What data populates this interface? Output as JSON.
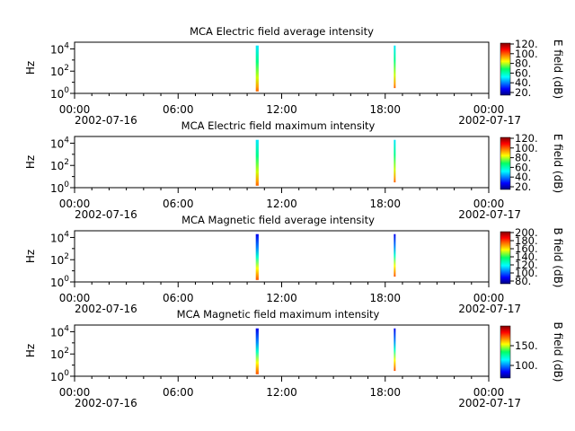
{
  "chart_data": [
    {
      "type": "heatmap",
      "title": "MCA  Electric field average intensity",
      "ylabel": "Hz",
      "y_scale": "log",
      "y_ticks": [
        {
          "base": "10",
          "exp": "0"
        },
        {
          "base": "10",
          "exp": "2"
        },
        {
          "base": "10",
          "exp": "4"
        }
      ],
      "x_ticks": [
        "00:00",
        "06:00",
        "12:00",
        "18:00",
        "00:00"
      ],
      "x_dates": [
        "2002-07-16",
        "2002-07-17"
      ],
      "colorbar": {
        "label": "E field (dB)",
        "ticks": [
          "120.",
          "100.",
          "80.",
          "60.",
          "40.",
          "20."
        ]
      },
      "segments": [
        {
          "x_start": "10:30",
          "x_end": "10:40",
          "freq_low": 1.5,
          "freq_high": 20000
        },
        {
          "x_start": "18:30",
          "x_end": "18:34",
          "freq_low": 3,
          "freq_high": 20000
        }
      ]
    },
    {
      "type": "heatmap",
      "title": "MCA  Electric field maximum intensity",
      "ylabel": "Hz",
      "y_scale": "log",
      "y_ticks": [
        {
          "base": "10",
          "exp": "0"
        },
        {
          "base": "10",
          "exp": "2"
        },
        {
          "base": "10",
          "exp": "4"
        }
      ],
      "x_ticks": [
        "00:00",
        "06:00",
        "12:00",
        "18:00",
        "00:00"
      ],
      "x_dates": [
        "2002-07-16",
        "2002-07-17"
      ],
      "colorbar": {
        "label": "E field (dB)",
        "ticks": [
          "120.",
          "100.",
          "80.",
          "60.",
          "40.",
          "20."
        ]
      },
      "segments": [
        {
          "x_start": "10:30",
          "x_end": "10:40",
          "freq_low": 1.5,
          "freq_high": 20000
        },
        {
          "x_start": "18:30",
          "x_end": "18:34",
          "freq_low": 3,
          "freq_high": 20000
        }
      ]
    },
    {
      "type": "heatmap",
      "title": "MCA  Magnetic field average intensity",
      "ylabel": "Hz",
      "y_scale": "log",
      "y_ticks": [
        {
          "base": "10",
          "exp": "0"
        },
        {
          "base": "10",
          "exp": "2"
        },
        {
          "base": "10",
          "exp": "4"
        }
      ],
      "x_ticks": [
        "00:00",
        "06:00",
        "12:00",
        "18:00",
        "00:00"
      ],
      "x_dates": [
        "2002-07-16",
        "2002-07-17"
      ],
      "colorbar": {
        "label": "B field (dB)",
        "ticks": [
          "200.",
          "180.",
          "160.",
          "140.",
          "120.",
          "100.",
          "80."
        ]
      },
      "segments": [
        {
          "x_start": "10:30",
          "x_end": "10:40",
          "freq_low": 1.5,
          "freq_high": 20000
        },
        {
          "x_start": "18:30",
          "x_end": "18:34",
          "freq_low": 3,
          "freq_high": 20000
        }
      ]
    },
    {
      "type": "heatmap",
      "title": "MCA  Magnetic field maximum intensity",
      "ylabel": "Hz",
      "y_scale": "log",
      "y_ticks": [
        {
          "base": "10",
          "exp": "0"
        },
        {
          "base": "10",
          "exp": "2"
        },
        {
          "base": "10",
          "exp": "4"
        }
      ],
      "x_ticks": [
        "00:00",
        "06:00",
        "12:00",
        "18:00",
        "00:00"
      ],
      "x_dates": [
        "2002-07-16",
        "2002-07-17"
      ],
      "colorbar": {
        "label": "B field (dB)",
        "ticks": [
          "150.",
          "100."
        ]
      },
      "segments": [
        {
          "x_start": "10:30",
          "x_end": "10:40",
          "freq_low": 1.5,
          "freq_high": 20000
        },
        {
          "x_start": "18:30",
          "x_end": "18:34",
          "freq_low": 3,
          "freq_high": 20000
        }
      ]
    }
  ]
}
